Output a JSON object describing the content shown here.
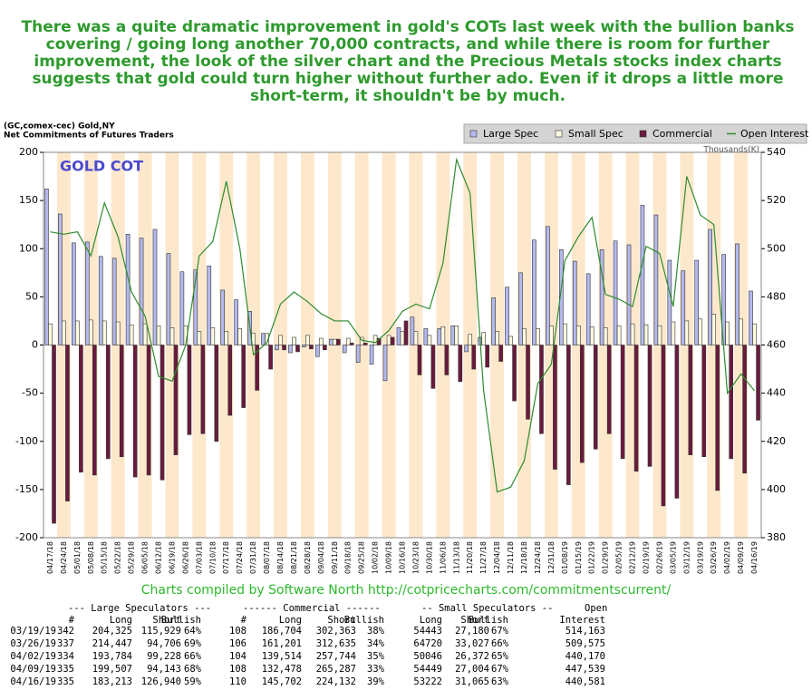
{
  "headline": [
    "There was a quite dramatic improvement in gold's COTs last week with the bullion banks",
    "covering / going long another 70,000 contracts, and while there is room for further",
    "improvement, the look of the silver chart and the Precious Metals stocks index charts",
    "suggests that gold could turn higher without further ado. Even if it drops a little more",
    "short-term, it shouldn't be by much."
  ],
  "chart_info": [
    "(GC,comex-cec) Gold,NY",
    "Net Commitments of Futures Traders"
  ],
  "chart_data": {
    "type": "bar",
    "annotation": "GOLD COT",
    "y2label": "Thousands(K)",
    "stripe_color": "#fde8cc",
    "categories": [
      "04/17/18",
      "04/24/18",
      "05/01/18",
      "05/08/18",
      "05/15/18",
      "05/22/18",
      "05/29/18",
      "06/05/18",
      "06/12/18",
      "06/19/18",
      "06/26/18",
      "07/03/18",
      "07/10/18",
      "07/17/18",
      "07/24/18",
      "07/31/18",
      "08/07/18",
      "08/14/18",
      "08/21/18",
      "08/28/18",
      "09/04/18",
      "09/11/18",
      "09/18/18",
      "09/25/18",
      "10/02/18",
      "10/09/18",
      "10/16/18",
      "10/23/18",
      "10/30/18",
      "11/06/18",
      "11/13/18",
      "11/20/18",
      "11/27/18",
      "12/04/18",
      "12/11/18",
      "12/18/18",
      "12/24/18",
      "12/31/18",
      "01/08/19",
      "01/15/19",
      "01/22/19",
      "01/29/19",
      "02/05/19",
      "02/12/19",
      "02/19/19",
      "02/26/19",
      "03/05/19",
      "03/12/19",
      "03/19/19",
      "03/26/19",
      "04/02/19",
      "04/09/19",
      "04/16/19"
    ],
    "series": [
      {
        "name": "Large Spec",
        "color": "#b3b9ec",
        "values": [
          162,
          136,
          106,
          107,
          92,
          90,
          115,
          111,
          120,
          95,
          76,
          78,
          82,
          57,
          47,
          35,
          12,
          -5,
          -8,
          -2,
          -12,
          6,
          -8,
          -18,
          -20,
          -37,
          18,
          29,
          17,
          17,
          20,
          -7,
          8,
          49,
          60,
          75,
          109,
          123,
          99,
          87,
          74,
          99,
          108,
          104,
          145,
          135,
          88,
          77,
          88,
          120,
          94,
          105,
          56
        ]
      },
      {
        "name": "Small Spec",
        "color": "#fffbe0",
        "values": [
          22,
          25,
          25,
          26,
          25,
          24,
          21,
          22,
          20,
          18,
          20,
          14,
          18,
          14,
          17,
          12,
          12,
          10,
          8,
          10,
          7,
          6,
          7,
          8,
          10,
          10,
          14,
          14,
          10,
          19,
          20,
          11,
          13,
          14,
          9,
          17,
          17,
          20,
          22,
          20,
          19,
          18,
          20,
          22,
          21,
          20,
          24,
          25,
          27,
          32,
          24,
          27,
          22
        ]
      },
      {
        "name": "Commercial",
        "color": "#6b1a3d",
        "values": [
          -185,
          -162,
          -132,
          -135,
          -118,
          -116,
          -137,
          -135,
          -140,
          -114,
          -93,
          -92,
          -100,
          -73,
          -65,
          -47,
          -25,
          -5,
          -7,
          -4,
          -5,
          6,
          2,
          2,
          7,
          8,
          25,
          -31,
          -45,
          -31,
          -38,
          -25,
          -23,
          -17,
          -58,
          -77,
          -92,
          -129,
          -145,
          -122,
          -108,
          -92,
          -118,
          -131,
          -126,
          -167,
          -159,
          -114,
          -116,
          -151,
          -118,
          -133,
          -78
        ]
      },
      {
        "name": "Open Interest",
        "color": "#2e8b2e",
        "type": "line",
        "axis": "y2",
        "values": [
          507,
          506,
          507,
          497,
          519,
          505,
          482,
          472,
          447,
          445,
          460,
          497,
          503,
          528,
          500,
          456,
          461,
          477,
          482,
          478,
          473,
          470,
          470,
          462,
          461,
          466,
          474,
          477,
          475,
          494,
          537,
          523,
          441,
          399,
          401,
          412,
          444,
          452,
          495,
          505,
          513,
          481,
          479,
          476,
          501,
          498,
          476,
          530,
          514,
          510,
          440,
          448,
          441
        ]
      }
    ],
    "ylim": [
      -200,
      200
    ],
    "yticks": [
      -200,
      -150,
      -100,
      -50,
      0,
      50,
      100,
      150,
      200
    ],
    "y2lim": [
      380,
      540
    ],
    "y2ticks": [
      380,
      400,
      420,
      440,
      460,
      480,
      500,
      520,
      540
    ],
    "legend": "top-right"
  },
  "credit": "Charts compiled by Software North  http://cotpricecharts.com/commitmentscurrent/",
  "table": {
    "groups": [
      "--- Large Speculators ---",
      "------ Commercial ------",
      "-- Small Speculators --",
      "Open"
    ],
    "columns": [
      "#",
      "Long",
      "Short",
      "Bullish",
      "#",
      "Long",
      "Short",
      "Bullish",
      "Long",
      "Short",
      "Bullish",
      "Interest"
    ],
    "rows": [
      [
        "03/19/19",
        "342",
        "204,325",
        "115,929",
        "64%",
        "108",
        "186,704",
        "302,363",
        "38%",
        "54443",
        "27,180",
        "67%",
        "514,163"
      ],
      [
        "03/26/19",
        "337",
        "214,447",
        "94,706",
        "69%",
        "106",
        "161,201",
        "312,635",
        "34%",
        "64720",
        "33,027",
        "66%",
        "509,575"
      ],
      [
        "04/02/19",
        "334",
        "193,784",
        "99,228",
        "66%",
        "104",
        "139,514",
        "257,744",
        "35%",
        "50046",
        "26,372",
        "65%",
        "440,170"
      ],
      [
        "04/09/19",
        "335",
        "199,507",
        "94,143",
        "68%",
        "108",
        "132,478",
        "265,287",
        "33%",
        "54449",
        "27,004",
        "67%",
        "447,539"
      ],
      [
        "04/16/19",
        "335",
        "183,213",
        "126,940",
        "59%",
        "110",
        "145,702",
        "224,132",
        "39%",
        "53222",
        "31,065",
        "63%",
        "440,581"
      ]
    ]
  }
}
